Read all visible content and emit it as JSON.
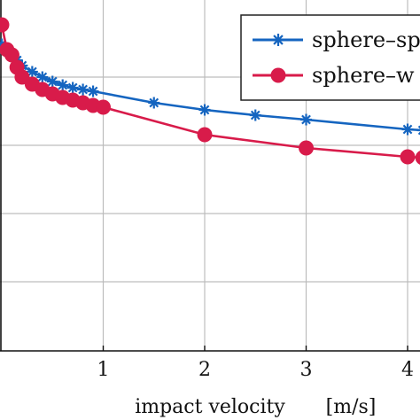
{
  "chart_data": {
    "type": "line",
    "xlabel": "impact velocity",
    "xunit": "[m/s]",
    "xticks": [
      1,
      2,
      3,
      4
    ],
    "xlim": [
      0,
      4.15
    ],
    "grid": true,
    "legend_position": "top-right",
    "series": [
      {
        "name": "sphere–sp",
        "color": "#1565c0",
        "marker": "asterisk",
        "x": [
          0.0,
          0.05,
          0.1,
          0.15,
          0.2,
          0.3,
          0.4,
          0.5,
          0.6,
          0.7,
          0.8,
          0.9,
          1.5,
          2.0,
          2.5,
          3.0,
          4.0,
          4.15
        ],
        "y": [
          0.5,
          0.56,
          0.62,
          0.68,
          0.74,
          0.81,
          0.87,
          0.92,
          0.96,
          0.99,
          1.01,
          1.03,
          1.16,
          1.24,
          1.3,
          1.35,
          1.46,
          1.47
        ]
      },
      {
        "name": "sphere–w",
        "color": "#d81b4a",
        "marker": "circle",
        "x": [
          0.0,
          0.05,
          0.1,
          0.15,
          0.2,
          0.3,
          0.4,
          0.5,
          0.6,
          0.7,
          0.8,
          0.9,
          1.0,
          2.0,
          3.0,
          4.0,
          4.15
        ],
        "y": [
          0.28,
          0.56,
          0.62,
          0.76,
          0.87,
          0.95,
          1.01,
          1.06,
          1.1,
          1.13,
          1.16,
          1.19,
          1.21,
          1.52,
          1.67,
          1.77,
          1.78
        ]
      }
    ],
    "ylim_inverted_display": [
      0.0,
      3.95
    ]
  }
}
